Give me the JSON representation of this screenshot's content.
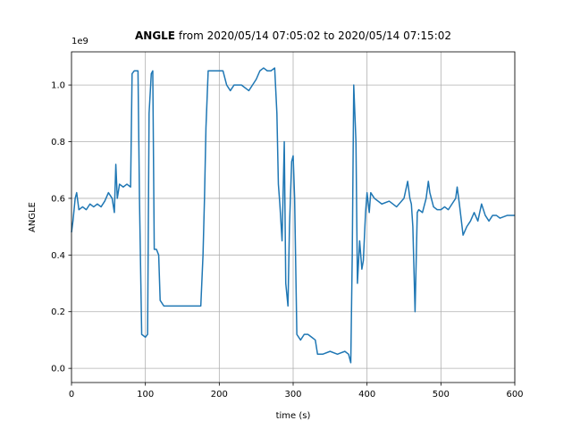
{
  "chart_data": {
    "type": "line",
    "title": "ANGLE",
    "subtitle": "from 2020/05/14 07:05:02 to 2020/05/14 07:15:02",
    "x_label": "time (s)",
    "y_label": "ANGLE",
    "y_offset_label": "1e9",
    "color": "#1f77b4",
    "grid": true,
    "xlim": [
      0,
      600
    ],
    "xticks": [
      0,
      100,
      200,
      300,
      400,
      500,
      600
    ],
    "ylim": [
      -0.05,
      1.117
    ],
    "yticks": [
      {
        "value": 0,
        "label": "0.0"
      },
      0.2,
      0.4,
      0.6,
      0.8,
      {
        "value": 1,
        "label": "1.0"
      }
    ],
    "x": [
      0,
      2,
      5,
      7,
      10,
      15,
      20,
      25,
      30,
      35,
      40,
      45,
      50,
      55,
      58,
      60,
      62,
      65,
      70,
      75,
      80,
      82,
      85,
      90,
      92,
      95,
      100,
      103,
      105,
      108,
      110,
      112,
      115,
      118,
      120,
      125,
      130,
      140,
      150,
      160,
      170,
      175,
      178,
      180,
      182,
      185,
      190,
      200,
      205,
      210,
      215,
      220,
      230,
      240,
      245,
      250,
      255,
      260,
      265,
      270,
      275,
      278,
      280,
      282,
      285,
      288,
      290,
      293,
      295,
      298,
      300,
      302,
      305,
      310,
      315,
      320,
      325,
      330,
      333,
      340,
      350,
      360,
      370,
      375,
      378,
      380,
      382,
      385,
      387,
      390,
      393,
      395,
      398,
      400,
      403,
      405,
      410,
      420,
      430,
      440,
      450,
      455,
      458,
      460,
      462,
      465,
      468,
      470,
      475,
      480,
      483,
      485,
      490,
      495,
      500,
      505,
      510,
      515,
      520,
      522,
      525,
      530,
      535,
      540,
      545,
      550,
      555,
      560,
      565,
      570,
      575,
      580,
      590,
      600
    ],
    "y": [
      0.48,
      0.52,
      0.6,
      0.62,
      0.56,
      0.57,
      0.56,
      0.58,
      0.57,
      0.58,
      0.57,
      0.59,
      0.62,
      0.6,
      0.55,
      0.72,
      0.6,
      0.65,
      0.64,
      0.65,
      0.64,
      1.04,
      1.05,
      1.05,
      0.6,
      0.12,
      0.11,
      0.12,
      0.9,
      1.04,
      1.05,
      0.42,
      0.42,
      0.4,
      0.24,
      0.22,
      0.22,
      0.22,
      0.22,
      0.22,
      0.22,
      0.22,
      0.4,
      0.6,
      0.85,
      1.05,
      1.05,
      1.05,
      1.05,
      1.0,
      0.98,
      1.0,
      1.0,
      0.98,
      1.0,
      1.02,
      1.05,
      1.06,
      1.05,
      1.05,
      1.06,
      0.9,
      0.65,
      0.58,
      0.45,
      0.8,
      0.3,
      0.22,
      0.5,
      0.73,
      0.75,
      0.6,
      0.12,
      0.1,
      0.12,
      0.12,
      0.11,
      0.1,
      0.05,
      0.05,
      0.06,
      0.05,
      0.06,
      0.05,
      0.02,
      0.4,
      1.0,
      0.8,
      0.3,
      0.45,
      0.35,
      0.38,
      0.55,
      0.62,
      0.55,
      0.62,
      0.6,
      0.58,
      0.59,
      0.57,
      0.6,
      0.66,
      0.6,
      0.58,
      0.5,
      0.2,
      0.55,
      0.56,
      0.55,
      0.6,
      0.66,
      0.62,
      0.57,
      0.56,
      0.56,
      0.57,
      0.56,
      0.58,
      0.6,
      0.64,
      0.58,
      0.47,
      0.5,
      0.52,
      0.55,
      0.52,
      0.58,
      0.54,
      0.52,
      0.54,
      0.54,
      0.53,
      0.54,
      0.54
    ]
  }
}
